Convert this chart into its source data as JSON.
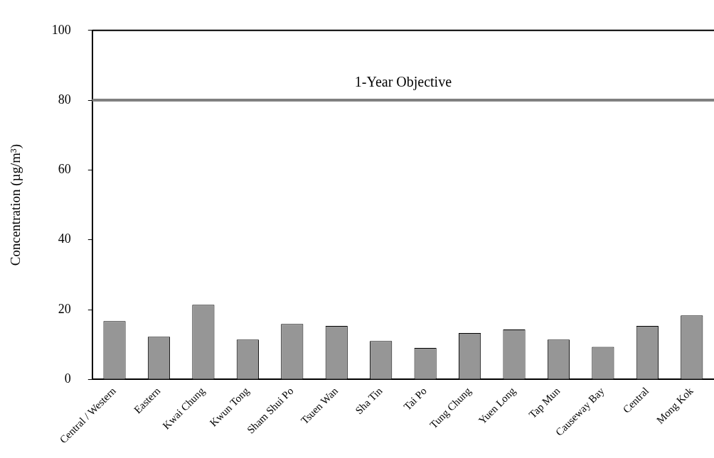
{
  "chart_data": {
    "type": "bar",
    "ylabel": "Concentration (µg/m³)",
    "categories": [
      "Central / Western",
      "Eastern",
      "Kwai Chung",
      "Kwun Tong",
      "Sham Shui Po",
      "Tsuen Wan",
      "Sha Tin",
      "Tai Po",
      "Tung Chung",
      "Yuen Long",
      "Tap Mun",
      "Causeway Bay",
      "Central",
      "Mong Kok"
    ],
    "values": [
      16.7,
      12.2,
      21.4,
      11.4,
      15.9,
      15.3,
      11.0,
      9.0,
      13.3,
      14.3,
      11.4,
      9.3,
      15.3,
      18.3
    ],
    "color": "#969696",
    "ylim": [
      0,
      100
    ],
    "yticks": [
      0,
      20,
      40,
      60,
      80,
      100
    ],
    "grid": false,
    "legend": false,
    "ref_lines": [
      {
        "axis": "y",
        "value": 80,
        "label": "1-Year Objective",
        "color": "#808080"
      }
    ]
  }
}
